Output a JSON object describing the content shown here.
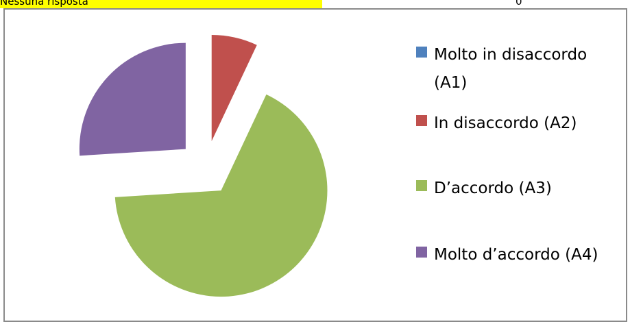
{
  "header": {
    "label": "Nessuna risposta",
    "count": "0"
  },
  "chart_data": {
    "type": "pie",
    "categories": [
      "Molto in disaccordo (A1)",
      "In disaccordo (A2)",
      "D’accordo (A3)",
      "Molto d’accordo (A4)"
    ],
    "values": [
      0,
      7,
      67,
      26
    ],
    "colors": [
      "#4f81bd",
      "#c0504d",
      "#9bbb59",
      "#8064a2"
    ],
    "exploded": true,
    "legend": "right"
  }
}
